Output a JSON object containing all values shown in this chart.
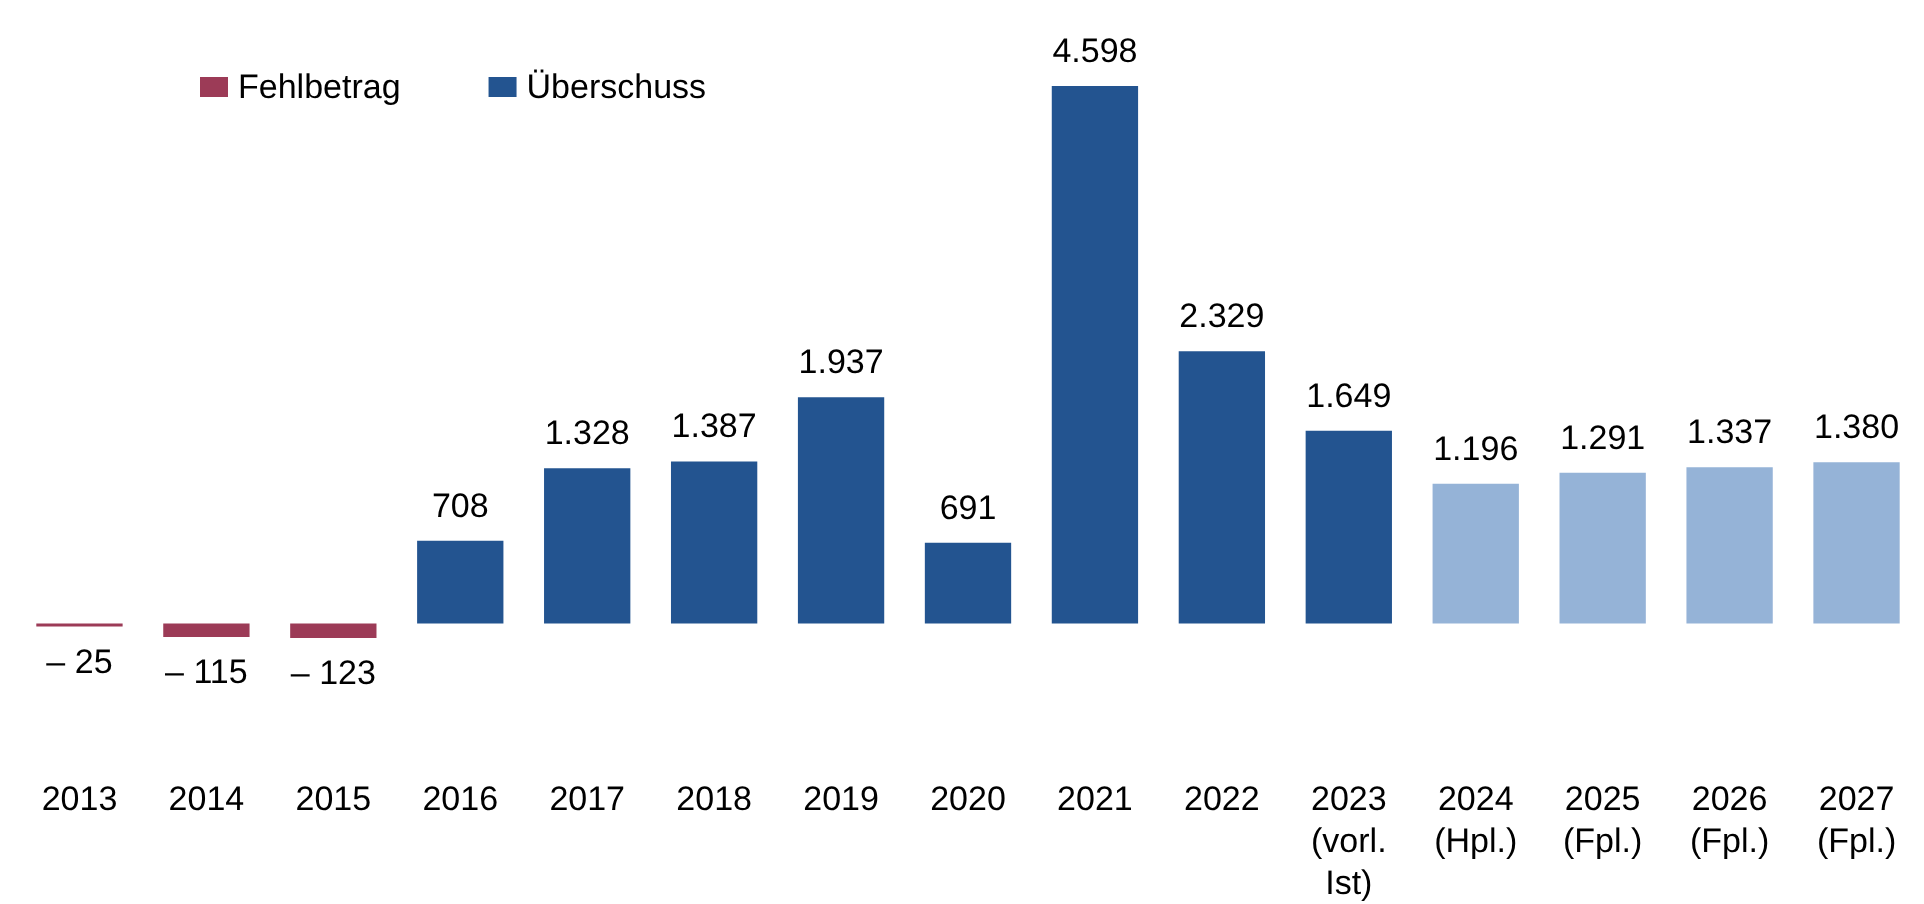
{
  "chart_data": {
    "type": "bar",
    "categories": [
      "2013",
      "2014",
      "2015",
      "2016",
      "2017",
      "2018",
      "2019",
      "2020",
      "2021",
      "2022",
      "2023 (vorl. Ist)",
      "2024 (Hpl.)",
      "2025 (Fpl.)",
      "2026 (Fpl.)",
      "2027 (Fpl.)"
    ],
    "series": [
      {
        "name": "Fehlbetrag",
        "color": "#9c3b57",
        "values": [
          -25,
          -115,
          -123,
          null,
          null,
          null,
          null,
          null,
          null,
          null,
          null,
          null,
          null,
          null,
          null
        ],
        "value_labels": [
          "– 25",
          "– 115",
          "– 123",
          null,
          null,
          null,
          null,
          null,
          null,
          null,
          null,
          null,
          null,
          null,
          null
        ]
      },
      {
        "name": "Überschuss",
        "color": "#235490",
        "values": [
          null,
          null,
          null,
          708,
          1328,
          1387,
          1937,
          691,
          4598,
          2329,
          1649,
          null,
          null,
          null,
          null
        ],
        "value_labels": [
          null,
          null,
          null,
          "708",
          "1.328",
          "1.387",
          "1.937",
          "691",
          "4.598",
          "2.329",
          "1.649",
          null,
          null,
          null,
          null
        ]
      },
      {
        "color": "#95b3d7",
        "values": [
          null,
          null,
          null,
          null,
          null,
          null,
          null,
          null,
          null,
          null,
          null,
          1196,
          1291,
          1337,
          1380
        ],
        "value_labels": [
          null,
          null,
          null,
          null,
          null,
          null,
          null,
          null,
          null,
          null,
          null,
          "1.196",
          "1.291",
          "1.337",
          "1.380"
        ]
      }
    ],
    "legend": "top left",
    "tick_labels": "x"
  }
}
